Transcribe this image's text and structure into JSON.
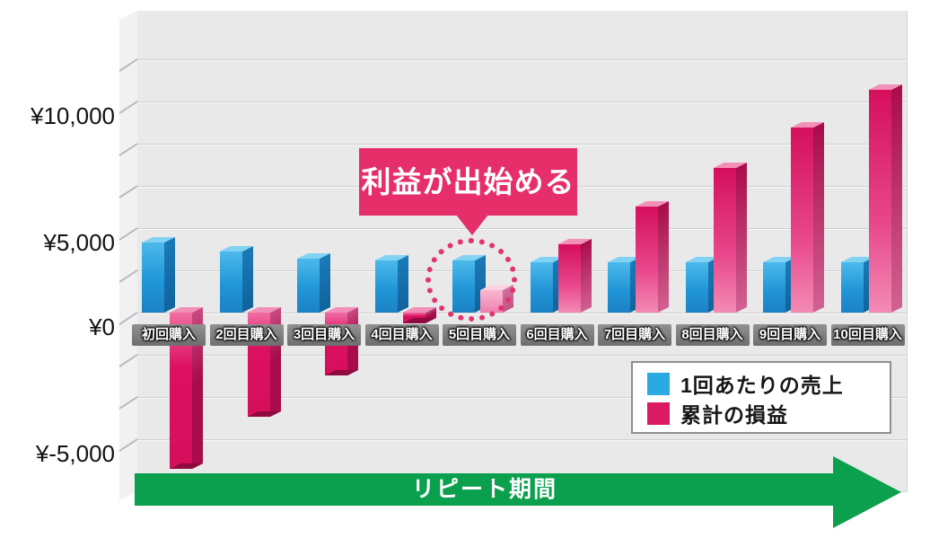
{
  "chart_data": {
    "type": "bar",
    "title": "",
    "categories": [
      "初回購入",
      "2回目購入",
      "3回目購入",
      "4回目購入",
      "5回目購入",
      "6回目購入",
      "7回目購入",
      "8回目購入",
      "9回目購入",
      "10回目購入"
    ],
    "series": [
      {
        "name": "1回あたりの売上",
        "color": "#29abe2",
        "values": [
          4000,
          3500,
          3100,
          3000,
          3000,
          2900,
          2900,
          2900,
          2900,
          2900
        ]
      },
      {
        "name": "累計の損益",
        "color": "#dc0e5a",
        "values": [
          -6000,
          -4000,
          -2400,
          -400,
          1300,
          3900,
          6100,
          8300,
          10600,
          12800
        ]
      }
    ],
    "y_ticks": [
      {
        "label": "¥10,000",
        "value": 10000
      },
      {
        "label": "¥5,000",
        "value": 5000
      },
      {
        "label": "¥0",
        "value": 0
      },
      {
        "label": "¥-5,000",
        "value": -5000
      }
    ],
    "ylim": [
      -7000,
      17000
    ],
    "grid": true,
    "legend_position": "bottom-right",
    "annotations": {
      "callout_text": "利益が出始める",
      "callout_points_to": "5回目購入",
      "highlighted_category_index": 4,
      "x_axis_arrow_label": "リピート期間"
    }
  },
  "legend": {
    "items": [
      {
        "label": "1回あたりの売上",
        "color": "#29abe2"
      },
      {
        "label": "累計の損益",
        "color": "#dc1a62"
      }
    ]
  },
  "callout": {
    "text": "利益が出始める"
  },
  "arrow": {
    "label": "リピート期間",
    "color": "#0ba04d"
  },
  "colors": {
    "bar_blue": "#29abe2",
    "bar_pink": "#dc0e5a",
    "bar_pink_highlight": "#f49cc0",
    "callout_bg": "#e62e6b",
    "arrow_green": "#0ba04d",
    "plot_bg": "#e9e9ea",
    "category_box_bg": "#7f7f7f"
  }
}
